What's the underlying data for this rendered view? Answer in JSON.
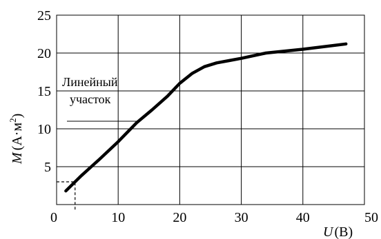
{
  "chart_data": {
    "type": "line",
    "title": "",
    "xlabel_var": "U",
    "xlabel_unit": "(В)",
    "ylabel_var": "M",
    "ylabel_unit": "(А·м²)",
    "xlim": [
      0,
      50
    ],
    "ylim": [
      0,
      25
    ],
    "x_ticks": [
      "0",
      "10",
      "20",
      "30",
      "40",
      "50"
    ],
    "y_ticks": [
      "0",
      "5",
      "10",
      "15",
      "20",
      "25"
    ],
    "grid": true,
    "series": [
      {
        "x": [
          1.5,
          4,
          7,
          10,
          13,
          15.5,
          18,
          20,
          22,
          24,
          26,
          28,
          30,
          34,
          40,
          47
        ],
        "y": [
          1.8,
          3.8,
          6.0,
          8.3,
          10.8,
          12.5,
          14.3,
          16.0,
          17.3,
          18.2,
          18.7,
          19.0,
          19.3,
          20.0,
          20.5,
          21.2
        ]
      }
    ],
    "annotation": {
      "line1": "Линейный",
      "line2": "участок",
      "pointer_y": 11
    },
    "dashed_marker": {
      "x": 3,
      "y": 3
    }
  }
}
